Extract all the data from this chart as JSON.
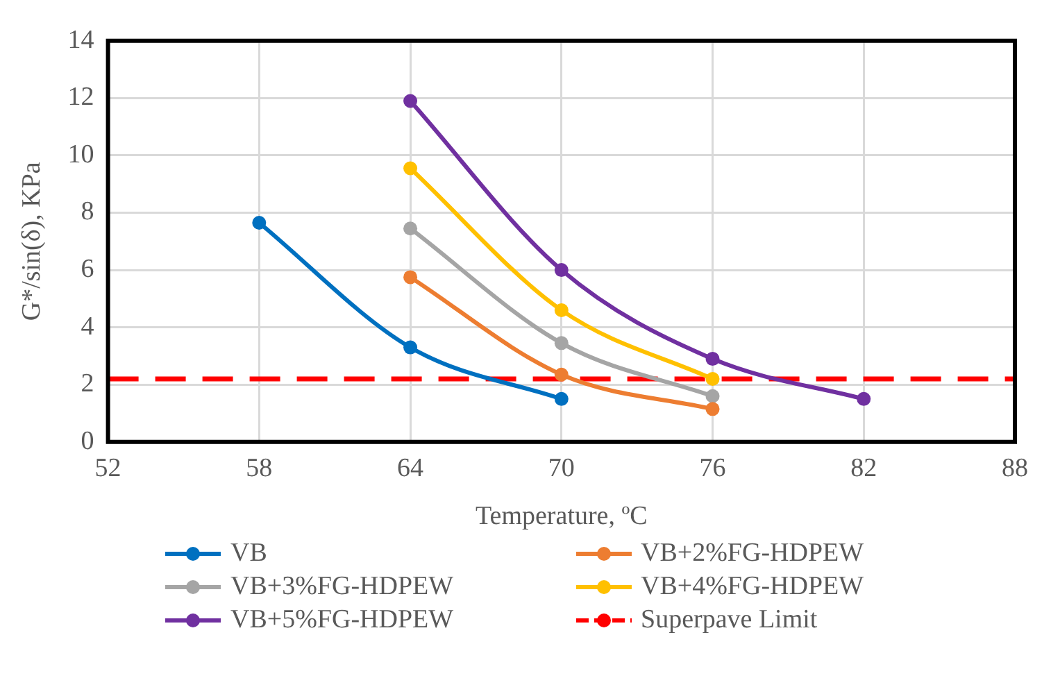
{
  "chart_data": {
    "type": "line",
    "xlabel": "Temperature, ºC",
    "ylabel": "G*/sin(δ), KPa",
    "xlim": [
      52,
      88
    ],
    "xticks": [
      52,
      58,
      64,
      70,
      76,
      82,
      88
    ],
    "ylim": [
      0,
      14
    ],
    "yticks": [
      0,
      2,
      4,
      6,
      8,
      10,
      12,
      14
    ],
    "grid": true,
    "legend": "bottom",
    "marker": "circle",
    "line_style": "solid",
    "series": [
      {
        "name": "VB",
        "color": "#0070c0",
        "x": [
          58,
          64,
          70
        ],
        "values": [
          7.65,
          3.3,
          1.5
        ]
      },
      {
        "name": "VB+2%FG-HDPEW",
        "color": "#ed7d31",
        "x": [
          64,
          70,
          76
        ],
        "values": [
          5.75,
          2.35,
          1.15
        ]
      },
      {
        "name": "VB+3%FG-HDPEW",
        "color": "#a5a5a5",
        "x": [
          64,
          70,
          76
        ],
        "values": [
          7.45,
          3.45,
          1.6
        ]
      },
      {
        "name": "VB+4%FG-HDPEW",
        "color": "#ffc000",
        "x": [
          64,
          70,
          76
        ],
        "values": [
          9.55,
          4.6,
          2.2
        ]
      },
      {
        "name": "VB+5%FG-HDPEW",
        "color": "#7030a0",
        "x": [
          64,
          70,
          76,
          82
        ],
        "values": [
          11.9,
          6.0,
          2.9,
          1.5
        ]
      }
    ],
    "ref_lines": [
      {
        "axis": "y",
        "value": 2.2,
        "label": "Superpave Limit",
        "color": "#ff0000",
        "line_style": "dashed"
      }
    ]
  }
}
